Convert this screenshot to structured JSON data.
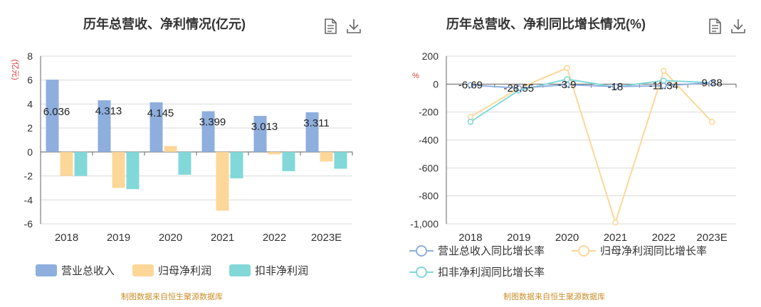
{
  "left": {
    "title": "历年总营收、净利情况(亿元)",
    "source": "制图数据来自恒生聚源数据库",
    "icons": [
      "document-icon",
      "download-icon"
    ],
    "chart_data": {
      "type": "bar",
      "ylabel": "(亿元)",
      "ylim": [
        -6,
        8
      ],
      "ytick_step": 2,
      "grid": true,
      "legend_position": "bottom",
      "categories": [
        "2018",
        "2019",
        "2020",
        "2021",
        "2022",
        "2023E"
      ],
      "series": [
        {
          "name": "营业总收入",
          "color": "#8eaedd",
          "values": [
            6.036,
            4.313,
            4.145,
            3.399,
            3.013,
            3.311
          ],
          "labels": [
            "6.036",
            "4.313",
            "4.145",
            "3.399",
            "3.013",
            "3.311"
          ]
        },
        {
          "name": "归母净利润",
          "color": "#fdd798",
          "values": [
            -2.0,
            -3.0,
            0.5,
            -4.9,
            -0.2,
            -0.8
          ]
        },
        {
          "name": "扣非净利润",
          "color": "#82d8d8",
          "values": [
            -2.0,
            -3.1,
            -1.9,
            -2.2,
            -1.6,
            -1.4
          ]
        }
      ]
    }
  },
  "right": {
    "title": "历年总营收、净利同比增长情况(%)",
    "source": "制图数据来自恒生聚源数据库",
    "icons": [
      "document-icon",
      "download-icon"
    ],
    "chart_data": {
      "type": "line",
      "ylabel": "%",
      "ylim": [
        -1000,
        200
      ],
      "ytick_step": 200,
      "grid": true,
      "legend_position": "bottom",
      "categories": [
        "2018",
        "2019",
        "2020",
        "2021",
        "2022",
        "2023E"
      ],
      "series": [
        {
          "name": "营业总收入同比增长率",
          "color": "#8eaedd",
          "values": [
            -6.69,
            -28.55,
            -3.9,
            -18,
            -11.34,
            9.88
          ],
          "labels": [
            "-6.69",
            "-28.55",
            "-3.9",
            "-18",
            "-11.34",
            "9.88"
          ]
        },
        {
          "name": "归母净利润同比增长率",
          "color": "#fdd798",
          "values": [
            -235,
            -30,
            115,
            -990,
            95,
            -270
          ]
        },
        {
          "name": "扣非净利润同比增长率",
          "color": "#82d8d8",
          "values": [
            -270,
            -45,
            35,
            -20,
            25,
            10
          ]
        }
      ]
    }
  }
}
